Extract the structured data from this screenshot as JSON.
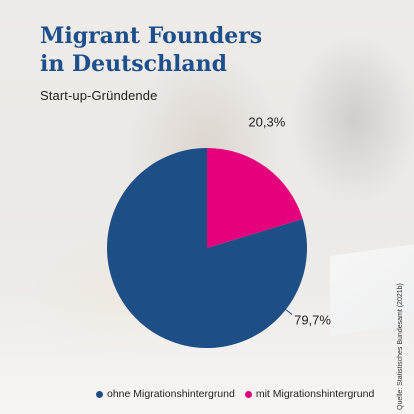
{
  "header": {
    "title_line1": "Migrant Founders",
    "title_line2": "in Deutschland",
    "subtitle": "Start-up-Gründende"
  },
  "chart_data": {
    "type": "pie",
    "title": "Migrant Founders in Deutschland",
    "subtitle": "Start-up-Gründende",
    "slices": [
      {
        "name": "ohne Migrationshintergrund",
        "value": 79.7,
        "label": "79,7%",
        "color": "#1e4e86"
      },
      {
        "name": "mit Migrationshintergrund",
        "value": 20.3,
        "label": "20,3%",
        "color": "#e5007d"
      }
    ],
    "legend_placement": "bottom",
    "start_angle_deg": 0,
    "direction": "counterclockwise"
  },
  "source": "Quelle: Statistisches Bundesamt (2021b)"
}
